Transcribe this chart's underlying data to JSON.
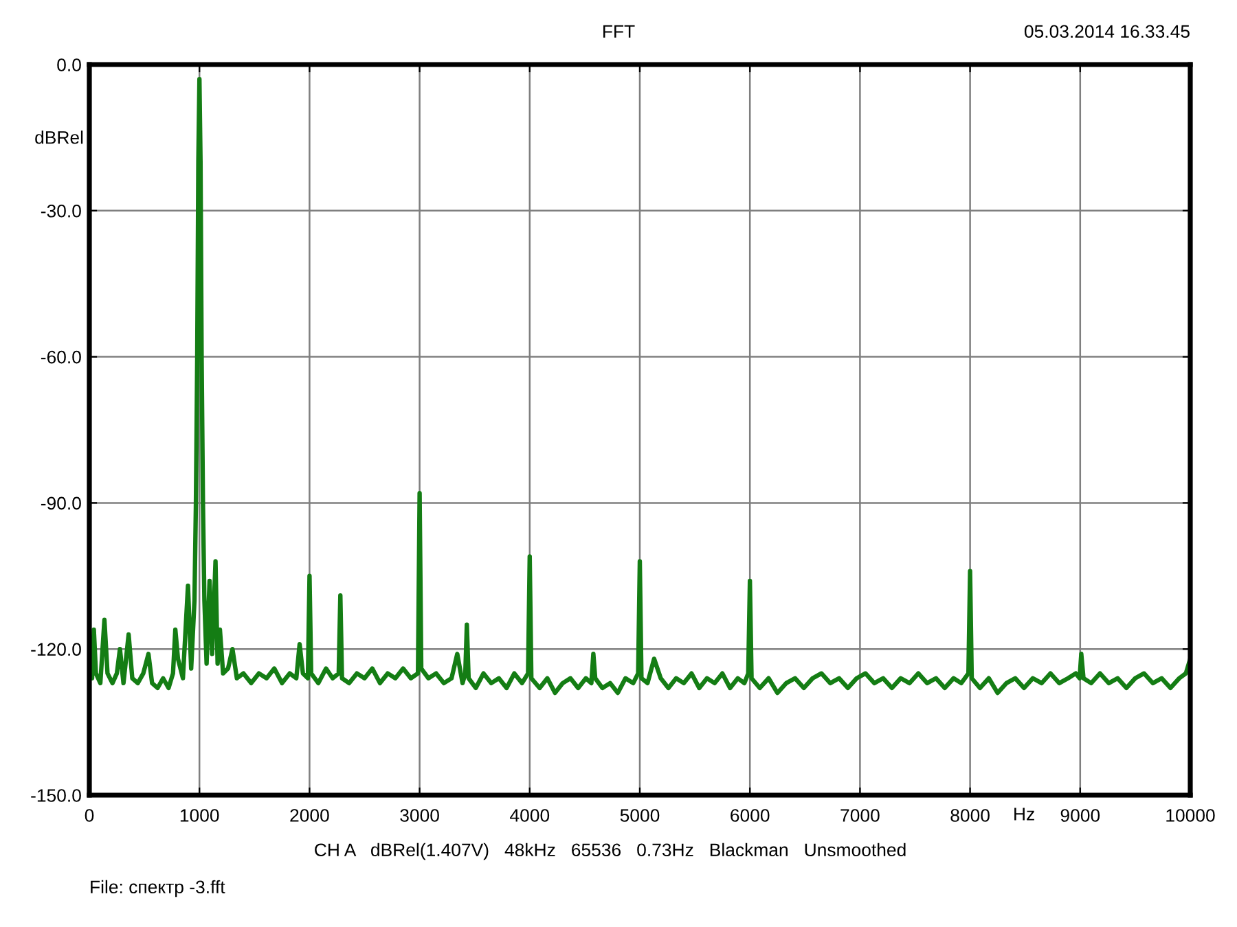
{
  "chart_data": {
    "type": "line",
    "title": "FFT",
    "xlabel": "Hz",
    "ylabel": "dBRel",
    "annotations": [
      "05.03.2014 16.33.45",
      "CH A   dBRel(1.407V)   48kHz   65536   0.73Hz   Blackman   Unsmoothed",
      "File: спектр -3.fft"
    ],
    "x": [
      0,
      25,
      41,
      60,
      100,
      137,
      165,
      210,
      250,
      278,
      310,
      357,
      390,
      440,
      490,
      537,
      570,
      620,
      670,
      720,
      760,
      781,
      805,
      850,
      896,
      925,
      955,
      968,
      980,
      990,
      1000,
      1010,
      1020,
      1032,
      1045,
      1065,
      1092,
      1115,
      1146,
      1165,
      1186,
      1215,
      1260,
      1300,
      1340,
      1400,
      1470,
      1540,
      1610,
      1680,
      1750,
      1820,
      1880,
      1910,
      1940,
      1985,
      2000,
      2015,
      2080,
      2150,
      2210,
      2265,
      2280,
      2295,
      2360,
      2430,
      2500,
      2570,
      2640,
      2710,
      2780,
      2850,
      2920,
      2985,
      3000,
      3015,
      3080,
      3150,
      3220,
      3290,
      3342,
      3390,
      3415,
      3429,
      3445,
      3510,
      3580,
      3650,
      3720,
      3790,
      3860,
      3930,
      3985,
      4000,
      4015,
      4090,
      4160,
      4230,
      4300,
      4370,
      4440,
      4510,
      4560,
      4578,
      4595,
      4660,
      4730,
      4800,
      4870,
      4940,
      4985,
      5000,
      5015,
      5070,
      5130,
      5190,
      5260,
      5330,
      5400,
      5470,
      5540,
      5610,
      5680,
      5750,
      5820,
      5890,
      5950,
      5985,
      6000,
      6015,
      6090,
      6170,
      6250,
      6330,
      6410,
      6490,
      6570,
      6650,
      6730,
      6810,
      6890,
      6970,
      7050,
      7130,
      7210,
      7290,
      7370,
      7450,
      7530,
      7610,
      7690,
      7770,
      7850,
      7920,
      7985,
      8000,
      8015,
      8090,
      8170,
      8250,
      8330,
      8410,
      8490,
      8570,
      8650,
      8730,
      8810,
      8890,
      8960,
      8995,
      9010,
      9030,
      9100,
      9180,
      9260,
      9340,
      9420,
      9500,
      9580,
      9660,
      9740,
      9820,
      9900,
      9960,
      10000
    ],
    "values": [
      -123,
      -126,
      -116,
      -125,
      -127,
      -114,
      -125,
      -127,
      -125,
      -120,
      -127,
      -117,
      -126,
      -127,
      -125,
      -121,
      -127,
      -128,
      -126,
      -128,
      -125,
      -116,
      -122,
      -126,
      -107,
      -124,
      -110,
      -90,
      -60,
      -20,
      -3,
      -20,
      -60,
      -90,
      -110,
      -123,
      -106,
      -121,
      -102,
      -123,
      -116,
      -125,
      -124,
      -120,
      -126,
      -125,
      -127,
      -125,
      -126,
      -124,
      -127,
      -125,
      -126,
      -119,
      -125,
      -126,
      -105,
      -125,
      -127,
      -124,
      -126,
      -125,
      -109,
      -126,
      -127,
      -125,
      -126,
      -124,
      -127,
      -125,
      -126,
      -124,
      -126,
      -125,
      -88,
      -124,
      -126,
      -125,
      -127,
      -126,
      -121,
      -127,
      -125,
      -115,
      -126,
      -128,
      -125,
      -127,
      -126,
      -128,
      -125,
      -127,
      -125,
      -101,
      -126,
      -128,
      -126,
      -129,
      -127,
      -126,
      -128,
      -126,
      -127,
      -121,
      -126,
      -128,
      -127,
      -129,
      -126,
      -127,
      -125,
      -102,
      -126,
      -127,
      -122,
      -126,
      -128,
      -126,
      -127,
      -125,
      -128,
      -126,
      -127,
      -125,
      -128,
      -126,
      -127,
      -125,
      -106,
      -126,
      -128,
      -126,
      -129,
      -127,
      -126,
      -128,
      -126,
      -125,
      -127,
      -126,
      -128,
      -126,
      -125,
      -127,
      -126,
      -128,
      -126,
      -127,
      -125,
      -127,
      -126,
      -128,
      -126,
      -127,
      -125,
      -104,
      -126,
      -128,
      -126,
      -129,
      -127,
      -126,
      -128,
      -126,
      -127,
      -125,
      -127,
      -126,
      -125,
      -126,
      -121,
      -126,
      -127,
      -125,
      -127,
      -126,
      -128,
      -126,
      -125,
      -127,
      -126,
      -128,
      -126,
      -125,
      -122
    ],
    "color": "#147d14",
    "line_style": "solid",
    "xlim": [
      0,
      10000
    ],
    "ylim": [
      -150,
      0
    ],
    "xticks": [
      0,
      1000,
      2000,
      3000,
      4000,
      5000,
      6000,
      7000,
      8000,
      9000,
      10000
    ],
    "yticks": [
      {
        "value": 0,
        "label": "0.0"
      },
      {
        "value": -30,
        "label": "-30.0"
      },
      {
        "value": -60,
        "label": "-60.0"
      },
      {
        "value": -90,
        "label": "-90.0"
      },
      {
        "value": -120,
        "label": "-120.0"
      },
      {
        "value": -150,
        "label": "-150.0"
      }
    ],
    "grid": true
  }
}
